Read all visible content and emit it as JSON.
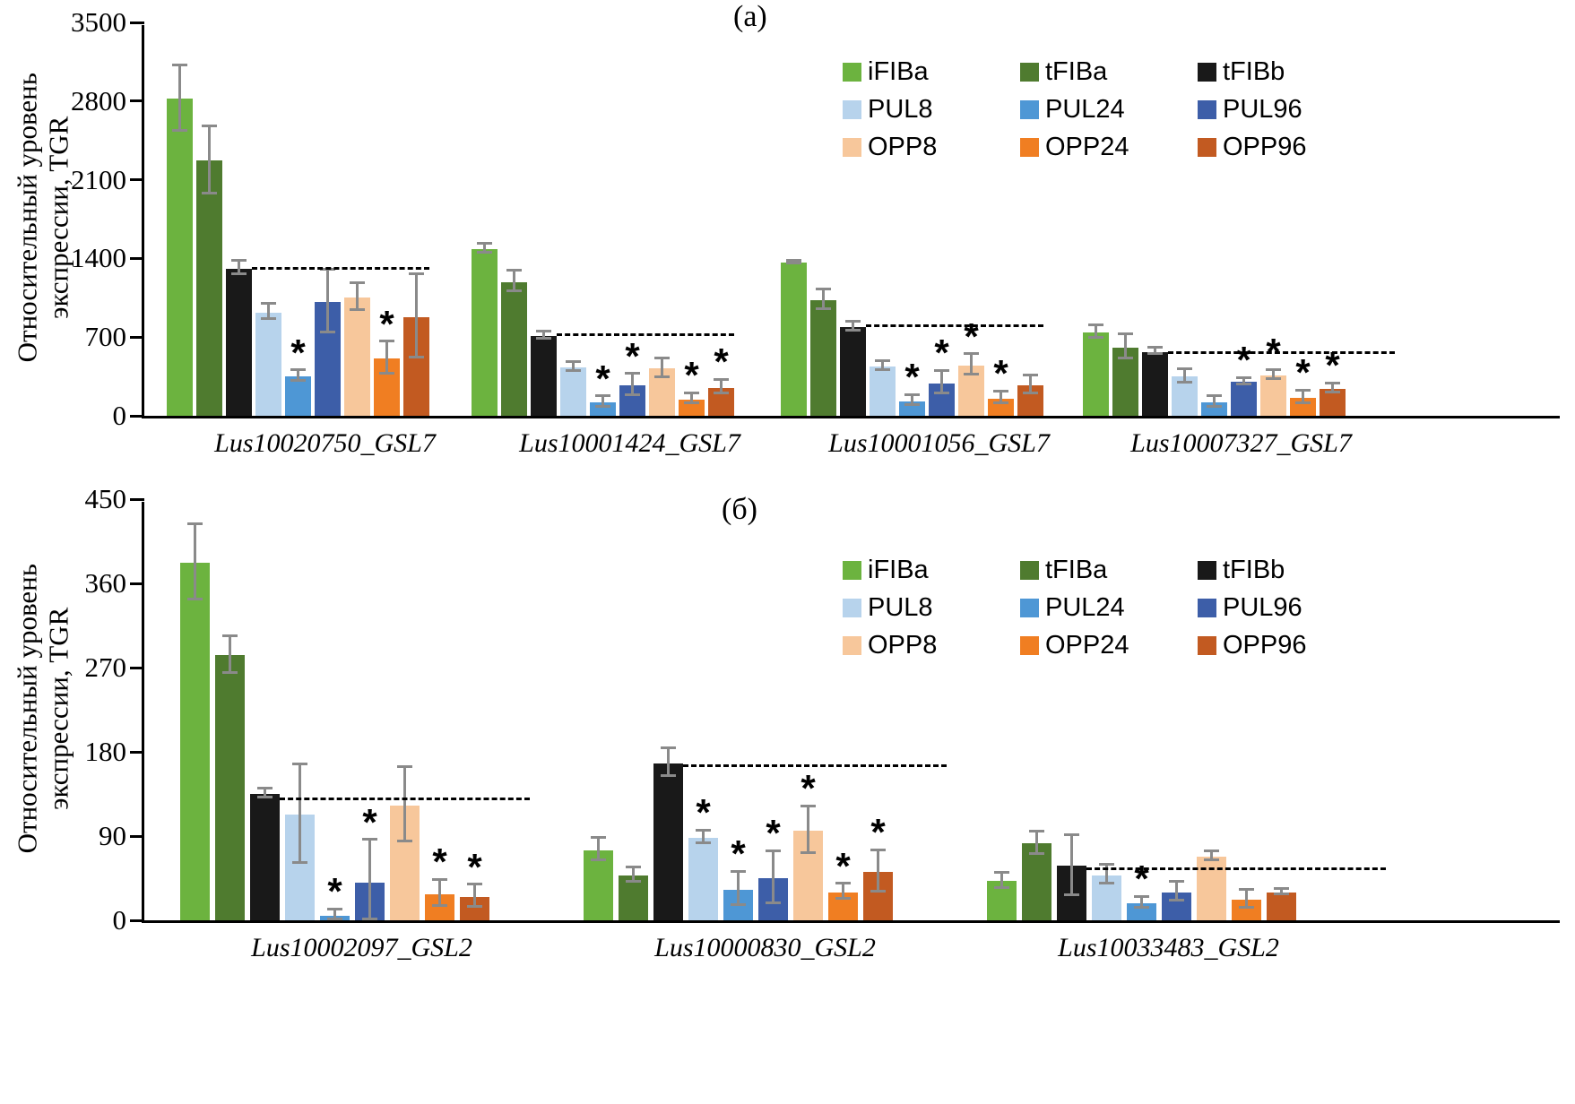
{
  "significance_marker": "*",
  "error_bar_color": "#8a8a8a",
  "axis_color": "#000000",
  "legend": {
    "entries": [
      {
        "label": "iFIBa",
        "color": "#6CB33F"
      },
      {
        "label": "tFIBa",
        "color": "#4F7B2F"
      },
      {
        "label": "tFIBb",
        "color": "#191919"
      },
      {
        "label": "PUL8",
        "color": "#B7D3EC"
      },
      {
        "label": "PUL24",
        "color": "#4E97D5"
      },
      {
        "label": "PUL96",
        "color": "#3D5EA8"
      },
      {
        "label": "OPP8",
        "color": "#F7C79B"
      },
      {
        "label": "OPP24",
        "color": "#F07E22"
      },
      {
        "label": "OPP96",
        "color": "#C25A21"
      }
    ]
  },
  "chart_data": [
    {
      "type": "bar",
      "panel_label": "(а)",
      "ylabel": "Относительный уровень экспрессии, TGR",
      "y_ticks": [
        0,
        700,
        1400,
        2100,
        2800,
        3500
      ],
      "ylim": [
        0,
        3500
      ],
      "grid": false,
      "legend_position": "top-right",
      "series_names": [
        "iFIBa",
        "tFIBa",
        "tFIBb",
        "PUL8",
        "PUL24",
        "PUL96",
        "OPP8",
        "OPP24",
        "OPP96"
      ],
      "groups": [
        {
          "name": "Lus10020750_GSL7",
          "values": [
            2820,
            2270,
            1310,
            920,
            350,
            1010,
            1050,
            510,
            880
          ],
          "errors": [
            290,
            300,
            60,
            70,
            45,
            280,
            120,
            140,
            370
          ],
          "significant": [
            4,
            7
          ],
          "dashed_line_level": 1310
        },
        {
          "name": "Lus10001424_GSL7",
          "values": [
            1480,
            1190,
            710,
            430,
            120,
            270,
            420,
            145,
            250
          ],
          "errors": [
            40,
            90,
            35,
            40,
            45,
            95,
            85,
            45,
            60
          ],
          "significant": [
            4,
            5,
            7,
            8
          ],
          "dashed_line_level": 720
        },
        {
          "name": "Lus10001056_GSL7",
          "values": [
            1360,
            1030,
            790,
            440,
            130,
            290,
            450,
            155,
            270
          ],
          "errors": [
            15,
            90,
            40,
            40,
            45,
            100,
            90,
            55,
            80
          ],
          "significant": [
            4,
            5,
            6,
            7
          ],
          "dashed_line_level": 800
        },
        {
          "name": "Lus10007327_GSL7",
          "values": [
            740,
            610,
            570,
            350,
            120,
            300,
            360,
            160,
            240
          ],
          "errors": [
            55,
            110,
            25,
            60,
            45,
            30,
            40,
            55,
            40
          ],
          "significant": [
            5,
            6,
            7,
            8
          ],
          "dashed_line_level": 560
        }
      ]
    },
    {
      "type": "bar",
      "panel_label": "(б)",
      "ylabel": "Относительный уровень экспрессии, TGR",
      "y_ticks": [
        0,
        90,
        180,
        270,
        360,
        450
      ],
      "ylim": [
        0,
        450
      ],
      "grid": false,
      "legend_position": "top-right",
      "series_names": [
        "iFIBa",
        "tFIBa",
        "tFIBb",
        "PUL8",
        "PUL24",
        "PUL96",
        "OPP8",
        "OPP24",
        "OPP96"
      ],
      "groups": [
        {
          "name": "Lus10002097_GSL2",
          "values": [
            382,
            283,
            135,
            113,
            5,
            40,
            123,
            28,
            25
          ],
          "errors": [
            40,
            20,
            5,
            53,
            6,
            45,
            40,
            14,
            12
          ],
          "significant": [
            4,
            5,
            7,
            8
          ],
          "dashed_line_level": 130
        },
        {
          "name": "Lus10000830_GSL2",
          "values": [
            75,
            48,
            168,
            88,
            33,
            45,
            96,
            30,
            52
          ],
          "errors": [
            12,
            8,
            15,
            7,
            18,
            28,
            25,
            8,
            22
          ],
          "significant": [
            3,
            4,
            5,
            6,
            7,
            8
          ],
          "dashed_line_level": 165
        },
        {
          "name": "Lus10033483_GSL2",
          "values": [
            42,
            82,
            58,
            48,
            18,
            30,
            68,
            22,
            30
          ],
          "errors": [
            8,
            12,
            32,
            10,
            6,
            10,
            5,
            10,
            3
          ],
          "significant": [
            4
          ],
          "dashed_line_level": 55
        }
      ]
    }
  ]
}
